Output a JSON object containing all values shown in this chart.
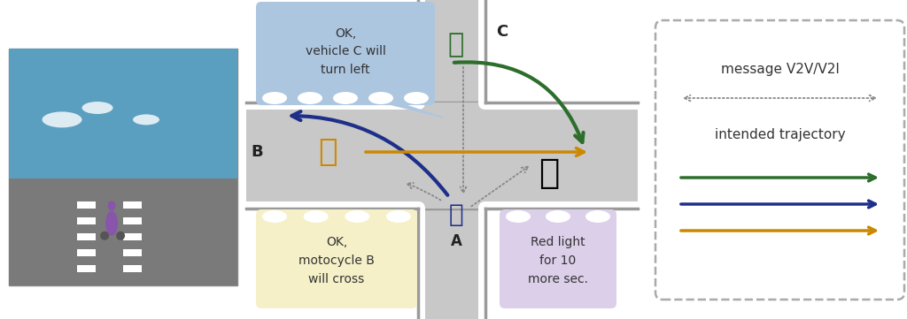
{
  "bg_color": "#ffffff",
  "road_color": "#c8c8c8",
  "road_border_color": "#9a9a9a",
  "label_A": "A",
  "label_B": "B",
  "label_C": "C",
  "callout_C_text": "OK,\nvehicle C will\nturn left",
  "callout_C_color": "#adc6e0",
  "callout_B_text": "OK,\nmotocycle B\nwill cross",
  "callout_B_color": "#f5f0c8",
  "callout_A_text": "Red light\nfor 10\nmore sec.",
  "callout_A_color": "#dccfea",
  "legend_msg_text": "message V2V/V2I",
  "legend_traj_text": "intended trajectory",
  "color_green": "#2d6e2d",
  "color_blue": "#1e2f8a",
  "color_orange": "#cc8800",
  "color_gray": "#888888",
  "photo_bg": "#7a9ab0",
  "figsize": [
    10.24,
    3.61
  ],
  "dpi": 100
}
